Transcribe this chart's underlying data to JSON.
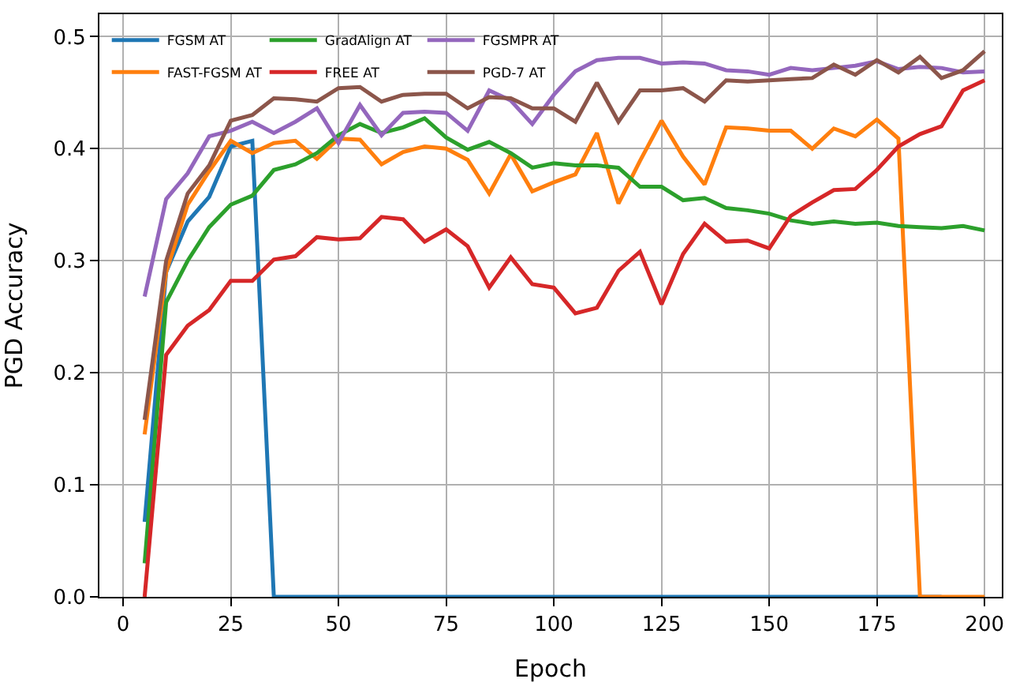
{
  "chart_data": {
    "type": "line",
    "xlabel": "Epoch",
    "ylabel": "PGD Accuracy",
    "x": [
      5,
      10,
      15,
      20,
      25,
      30,
      35,
      40,
      45,
      50,
      55,
      60,
      65,
      70,
      75,
      80,
      85,
      90,
      95,
      100,
      105,
      110,
      115,
      120,
      125,
      130,
      135,
      140,
      145,
      150,
      155,
      160,
      165,
      170,
      175,
      180,
      185,
      190,
      195,
      200
    ],
    "xlim": [
      -5.5,
      204
    ],
    "ylim": [
      0,
      0.52
    ],
    "xticks": [
      0,
      25,
      50,
      75,
      100,
      125,
      150,
      175,
      200
    ],
    "yticks": [
      {
        "value": 0,
        "label": "0.0"
      },
      0.1,
      0.2,
      0.3,
      0.4,
      0.5
    ],
    "grid": true,
    "legend": "top left",
    "marker": "none",
    "line_style": "solid",
    "series": [
      {
        "name": "FGSM AT",
        "color": "#1f77b4",
        "values": [
          0.067,
          0.29,
          0.335,
          0.357,
          0.402,
          0.407,
          0,
          0,
          0,
          0,
          0,
          0,
          0,
          0,
          0,
          0,
          0,
          0,
          0,
          0,
          0,
          0,
          0,
          0,
          0,
          0,
          0,
          0,
          0,
          0,
          0,
          0,
          0,
          0,
          0,
          0,
          0,
          0,
          null,
          null
        ]
      },
      {
        "name": "FAST-FGSM AT",
        "color": "#ff7f0e",
        "values": [
          0.145,
          0.29,
          0.35,
          0.38,
          0.407,
          0.396,
          0.405,
          0.407,
          0.391,
          0.409,
          0.408,
          0.386,
          0.397,
          0.402,
          0.4,
          0.39,
          0.36,
          0.395,
          0.362,
          0.37,
          0.377,
          0.414,
          0.351,
          0.389,
          0.425,
          0.393,
          0.368,
          0.419,
          0.418,
          0.416,
          0.416,
          0.4,
          0.418,
          0.411,
          0.426,
          0.409,
          0,
          0,
          0,
          0
        ]
      },
      {
        "name": "GradAlign AT",
        "color": "#2ca02c",
        "values": [
          0.03,
          0.263,
          0.3,
          0.33,
          0.35,
          0.358,
          0.381,
          0.386,
          0.396,
          0.412,
          0.422,
          0.414,
          0.419,
          0.427,
          0.41,
          0.399,
          0.406,
          0.396,
          0.383,
          0.387,
          0.385,
          0.385,
          0.383,
          0.366,
          0.366,
          0.354,
          0.356,
          0.347,
          0.345,
          0.342,
          0.336,
          0.333,
          0.335,
          0.333,
          0.334,
          0.331,
          0.33,
          0.329,
          0.331,
          0.327
        ]
      },
      {
        "name": "FREE AT",
        "color": "#d62728",
        "values": [
          0,
          0.216,
          0.242,
          0.256,
          0.282,
          0.282,
          0.301,
          0.304,
          0.321,
          0.319,
          0.32,
          0.339,
          0.337,
          0.317,
          0.328,
          0.313,
          0.276,
          0.303,
          0.279,
          0.276,
          0.253,
          0.258,
          0.291,
          0.308,
          0.261,
          0.306,
          0.333,
          0.317,
          0.318,
          0.311,
          0.34,
          0.352,
          0.363,
          0.364,
          0.381,
          0.402,
          0.413,
          0.42,
          0.452,
          0.461
        ]
      },
      {
        "name": "FGSMPR AT",
        "color": "#9467bd",
        "values": [
          0.268,
          0.355,
          0.378,
          0.411,
          0.416,
          0.424,
          0.414,
          0.424,
          0.436,
          0.405,
          0.439,
          0.412,
          0.432,
          0.433,
          0.432,
          0.416,
          0.452,
          0.443,
          0.422,
          0.448,
          0.469,
          0.479,
          0.481,
          0.481,
          0.476,
          0.477,
          0.476,
          0.47,
          0.469,
          0.466,
          0.472,
          0.47,
          0.472,
          0.474,
          0.478,
          0.471,
          0.473,
          0.472,
          0.468,
          0.469
        ]
      },
      {
        "name": "PGD-7 AT",
        "color": "#8c564b",
        "values": [
          0.158,
          0.3,
          0.36,
          0.385,
          0.425,
          0.43,
          0.445,
          0.444,
          0.442,
          0.454,
          0.455,
          0.442,
          0.448,
          0.449,
          0.449,
          0.436,
          0.446,
          0.445,
          0.436,
          0.436,
          0.424,
          0.459,
          0.424,
          0.452,
          0.452,
          0.454,
          0.442,
          0.461,
          0.46,
          0.461,
          0.462,
          0.463,
          0.475,
          0.466,
          0.479,
          0.468,
          0.482,
          0.463,
          0.47,
          0.487
        ]
      }
    ]
  }
}
